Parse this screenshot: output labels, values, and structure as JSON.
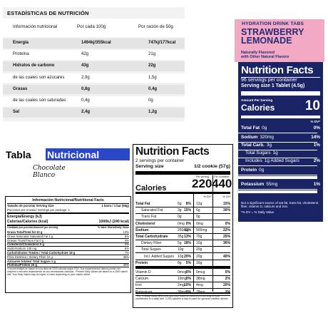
{
  "estadisticas": {
    "title": "ESTADÍSTICAS DE NUTRICIÓN",
    "headers": [
      "Información nutricional",
      "Por cada 100g",
      "Por ración de 50g"
    ],
    "rows": [
      {
        "label": "Energía",
        "v1": "1494kj/355kcal",
        "v2": "747kj/177kcal",
        "bold": true
      },
      {
        "label": "Proteína",
        "v1": "42g",
        "v2": "21g",
        "bold": false
      },
      {
        "label": "Hidratos de carbono",
        "v1": "43g",
        "v2": "22g",
        "bold": true
      },
      {
        "label": "de las cuales son azúcares",
        "v1": "2,9g",
        "v2": "1,5g",
        "bold": false
      },
      {
        "label": "Grasas",
        "v1": "0,8g",
        "v2": "0,4g",
        "bold": true
      },
      {
        "label": "de las cuales son saturadas",
        "v1": "0,4g",
        "v2": "0g",
        "bold": false
      },
      {
        "label": "Sal",
        "v1": "2,4g",
        "v2": "1,2g",
        "bold": true
      }
    ]
  },
  "hydration": {
    "tagline": "HYDRATION DRINK TABS",
    "flavor_line1": "STRAWBERRY",
    "flavor_line2": "LEMONADE",
    "flavor_note1": "Naturally Flavored",
    "flavor_note2": "with Other Natural Flavors",
    "panel_title": "Nutrition Facts",
    "servings": "96 servings per container",
    "serving_size_label": "Serving size",
    "serving_size_value": "1 Tablet (4.5g)",
    "amount_label": "Amount Per Serving",
    "calories_label": "Calories",
    "calories_value": "10",
    "dv_header": "% DV*",
    "rows": [
      {
        "label": "Total Fat",
        "amount": "0g",
        "dv": "0%"
      },
      {
        "label": "Sodium",
        "amount": "320mg",
        "dv": "14%"
      },
      {
        "label": "Total Carb.",
        "amount": "3g",
        "dv": "1%"
      },
      {
        "label": "Total Sugars",
        "amount": "1g",
        "dv": ""
      },
      {
        "label": "Includes",
        "amount": "1g Added Sugars",
        "dv": "2%"
      },
      {
        "label": "Protein",
        "amount": "0g",
        "dv": ""
      },
      {
        "label": "Potassium",
        "amount": "55mg",
        "dv": "1%"
      }
    ],
    "footnote": "Not a significant source of sat fat, trans fat, cholesterol, fiber, vitamin D, calcium and iron.",
    "footnote2": "*% DV = % Daily Value"
  },
  "tabla": {
    "title_a": "Tabla",
    "title_b": "Nutricional",
    "subtitle": "Chocolate Blanco",
    "header": "Información Nutricional/Nutritional Facts",
    "serving_label": "Tamaño de porción/ Serving Size",
    "serving_value": "1 barra / 1 bar (65g)",
    "per_pkg": "Porciones por envase/ Servings per package: 1",
    "energy_label": "Energía/Energy (kJ)",
    "calories_label": "Calorías/Calories (kcal)",
    "calories_value": "1000kJ (240 kcal)",
    "qty_label": "Cantidad por porción/Amount per serving",
    "dv_label": "% Valor Diario/Daily Value",
    "rows": [
      {
        "label": "Grasa Total/Total fat 10 g",
        "dv": "13%"
      },
      {
        "label": "Grasa Saturada/ Saturated Fat 1 g",
        "dv": "5%"
      },
      {
        "label": "Grasas Trans/Trans Fat 0 g",
        "dv": "0%"
      },
      {
        "label": "Colesterol/Cholesterol 0 g",
        "dv": "0%"
      },
      {
        "label": "Sodio/Sodium 130 mg",
        "dv": "6%"
      },
      {
        "label": "Carbohidratos Totales / Total Carbohydrate 18 g",
        "dv": "7%"
      },
      {
        "label": "Fibra Dietética / Dietary Fiber 10 g",
        "dv": "36%"
      },
      {
        "label": "Azúcares totales/ Total Sugars 1 g",
        "dv": ""
      },
      {
        "label": "Proteína/Protein  20 g",
        "dv": "40%"
      }
    ],
    "footnote": "*Los porcentajes se basan en una dieta de 2000 calorías según FDA. Sus requerimientos diarios pueden ser mayores o menores dependiendo de sus necesidades calóricas. / Percent Daily Values are based on a 2000 calorie diet. Your Daily Values may be higher or lower depending on your calorie needs"
  },
  "facts": {
    "title": "Nutrition Facts",
    "servings": "2 servings per container",
    "serving_size_label": "Serving size",
    "serving_size_value": "1/2 cookie (57g)",
    "calories_label": "Calories",
    "per_serving": "Per serving",
    "per_container": "Per container",
    "cal_serving": "220",
    "cal_container": "440",
    "dv_header": "% DV*",
    "rows": [
      {
        "label": "Total Fat",
        "a1": "6g",
        "d1": "8%",
        "a2": "12g",
        "d2": "15%",
        "bold": true
      },
      {
        "label": "Saturated Fat",
        "a1": "3g",
        "d1": "15%",
        "a2": "6g",
        "d2": "30%",
        "bold": false
      },
      {
        "label": "Trans Fat",
        "a1": "0g",
        "d1": "",
        "a2": "0g",
        "d2": "",
        "bold": false
      },
      {
        "label": "Cholesterol",
        "a1": "0mg",
        "d1": "0%",
        "a2": "0mg",
        "d2": "0%",
        "bold": true
      },
      {
        "label": "Sodium",
        "a1": "250mg",
        "d1": "11%",
        "a2": "500mg",
        "d2": "22%",
        "bold": true
      },
      {
        "label": "Total Carbohydrate",
        "a1": "35g",
        "d1": "13%",
        "a2": "70g",
        "d2": "25%",
        "bold": true
      },
      {
        "label": "Dietary Fiber",
        "a1": "5g",
        "d1": "18%",
        "a2": "10g",
        "d2": "36%",
        "bold": false
      },
      {
        "label": "Total Sugars",
        "a1": "10g",
        "d1": "",
        "a2": "20g",
        "d2": "",
        "bold": false
      },
      {
        "label": "Incl. Added Sugars",
        "a1": "10g",
        "d1": "20%",
        "a2": "20g",
        "d2": "40%",
        "bold": false
      },
      {
        "label": "Protein",
        "a1": "8g",
        "d1": "5%",
        "a2": "16g",
        "d2": "",
        "bold": true
      },
      {
        "label": "Vitamin D",
        "a1": "0mcg",
        "d1": "0%",
        "a2": "0mcg",
        "d2": "0%",
        "bold": false
      },
      {
        "label": "Calcium",
        "a1": "19mg",
        "d1": "0%",
        "a2": "38mg",
        "d2": "2%",
        "bold": false
      },
      {
        "label": "Iron",
        "a1": "2mg",
        "d1": "10%",
        "a2": "4mg",
        "d2": "20%",
        "bold": false
      },
      {
        "label": "Potassium",
        "a1": "39mg",
        "d1": "0%",
        "a2": "78mg",
        "d2": "2%",
        "bold": false
      }
    ],
    "footnote": "*The % Daily Value (DV) tells you how much a nutrient in a serving of food contributes to a daily diet. 2,000 calories a day is used for general nutrition advice."
  }
}
